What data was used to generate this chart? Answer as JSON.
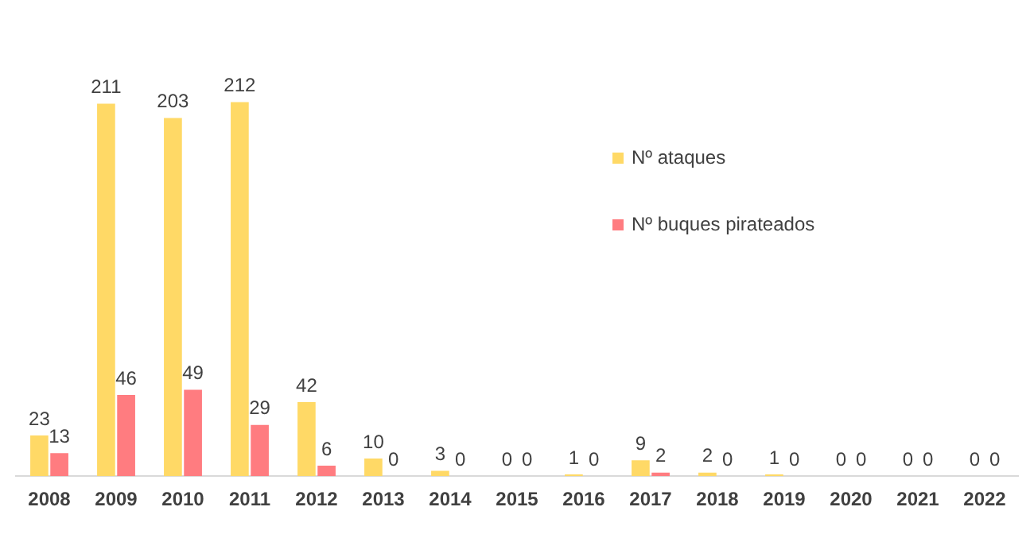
{
  "chart_data": {
    "type": "bar",
    "categories": [
      "2008",
      "2009",
      "2010",
      "2011",
      "2012",
      "2013",
      "2014",
      "2015",
      "2016",
      "2017",
      "2018",
      "2019",
      "2020",
      "2021",
      "2022"
    ],
    "series": [
      {
        "name": "Nº ataques",
        "color": "#ffd966",
        "values": [
          23,
          211,
          203,
          212,
          42,
          10,
          3,
          0,
          1,
          9,
          2,
          1,
          0,
          0,
          0
        ]
      },
      {
        "name": "Nº buques pirateados",
        "color": "#ff7c80",
        "values": [
          13,
          46,
          49,
          29,
          6,
          0,
          0,
          0,
          0,
          2,
          0,
          0,
          0,
          0,
          0
        ]
      }
    ],
    "data_labels": true,
    "grid": false,
    "legend": "right",
    "tick_labels": "x"
  }
}
